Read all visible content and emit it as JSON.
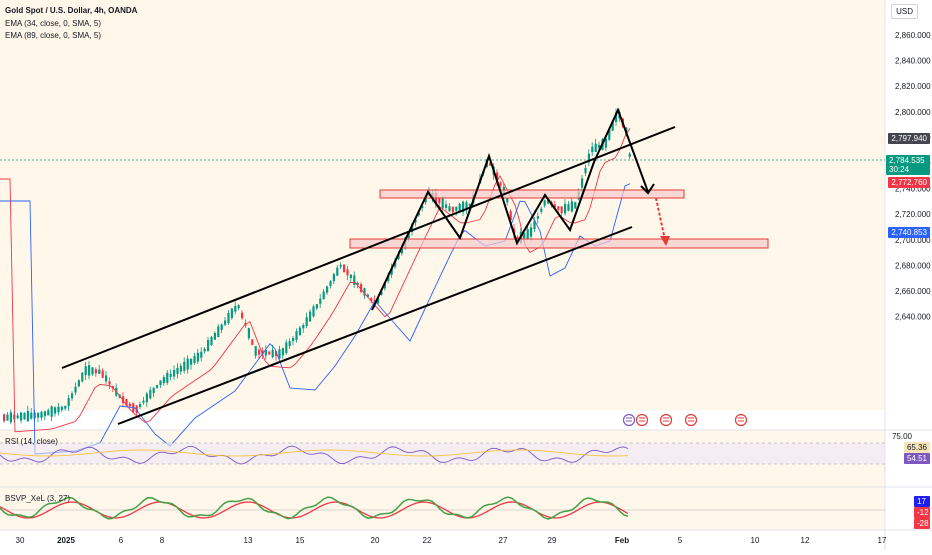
{
  "header": {
    "title": "Gold Spot / U.S. Dollar, 4h, OANDA",
    "indicators": [
      "EMA (34, close, 0, SMA, 5)",
      "EMA (89, close, 0, SMA, 5)"
    ]
  },
  "currency_label": "USD",
  "price_axis": {
    "ticks": [
      "2,860.000",
      "2,840.000",
      "2,820.000",
      "2,800.000",
      "2,780.000",
      "2,760.000",
      "2,740.000",
      "2,720.000",
      "2,700.000",
      "2,680.000",
      "2,660.000",
      "2,640.000"
    ]
  },
  "price_badges": {
    "last_price": "2,797.940",
    "current_price": "2,784.535",
    "countdown": "30:24",
    "ema34": "2,772.760",
    "ema89": "2,740.853"
  },
  "time_axis": {
    "ticks": [
      "30",
      "2025",
      "6",
      "8",
      "13",
      "15",
      "20",
      "22",
      "27",
      "29",
      "Feb",
      "5",
      "10",
      "12",
      "17"
    ]
  },
  "rsi_pane": {
    "label": "RSI (14, close)",
    "upper_level": "75.00",
    "value": "65.36",
    "ma_value": "54.51"
  },
  "bsvp_pane": {
    "label": "BSVP_XeL (3, 27)",
    "values": [
      "17",
      "-12",
      "-28"
    ]
  },
  "colors": {
    "bull": "#089981",
    "bear": "#f23645",
    "ema34": "#f23645",
    "ema89": "#2962ff",
    "zone_fill": "#f7c9cc",
    "zone_stroke": "#e53935",
    "overlay": "#fff3e0"
  }
}
